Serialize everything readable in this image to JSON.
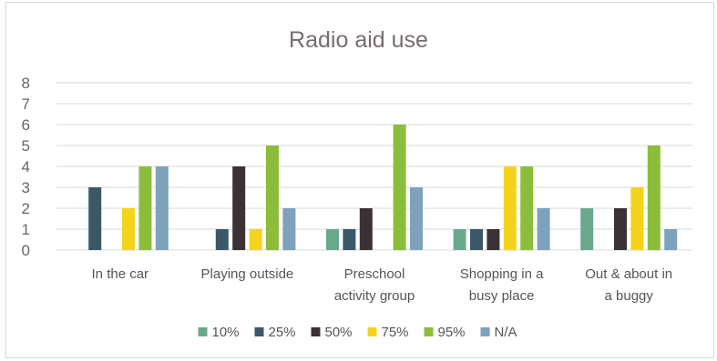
{
  "chart_data": {
    "type": "bar",
    "title": "Radio aid use",
    "categories": [
      [
        "In the car"
      ],
      [
        "Playing outside"
      ],
      [
        "Preschool",
        "activity group"
      ],
      [
        "Shopping in a",
        "busy place"
      ],
      [
        "Out & about in",
        "a buggy"
      ]
    ],
    "series": [
      {
        "name": "10%",
        "color": "#6aa88e",
        "values": [
          0,
          0,
          1,
          1,
          2
        ]
      },
      {
        "name": "25%",
        "color": "#3b5867",
        "values": [
          3,
          1,
          1,
          1,
          0
        ]
      },
      {
        "name": "50%",
        "color": "#3a3234",
        "values": [
          0,
          4,
          2,
          1,
          2
        ]
      },
      {
        "name": "75%",
        "color": "#f4d31c",
        "values": [
          2,
          1,
          0,
          4,
          3
        ]
      },
      {
        "name": "95%",
        "color": "#8cbd3a",
        "values": [
          4,
          5,
          6,
          4,
          5
        ]
      },
      {
        "name": "N/A",
        "color": "#7da2bc",
        "values": [
          4,
          2,
          3,
          2,
          1
        ]
      }
    ],
    "ylim": [
      0,
      8
    ],
    "yticks": [
      0,
      1,
      2,
      3,
      4,
      5,
      6,
      7,
      8
    ],
    "grid": true,
    "legend": "bottom"
  }
}
